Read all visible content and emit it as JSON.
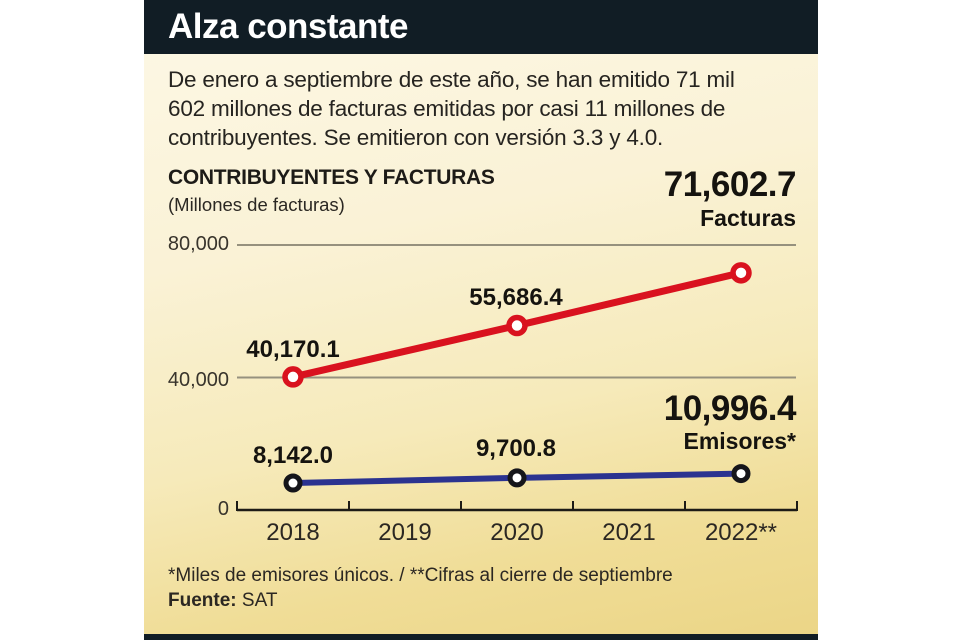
{
  "header": {
    "title": "Alza constante"
  },
  "intro": "De enero a septiembre de este año, se han emitido 71 mil 602 millones de facturas emitidas por casi 11 millones de contribuyentes. Se emitieron con versión 3.3 y 4.0.",
  "chart_data": {
    "type": "line",
    "title": "CONTRIBUYENTES Y FACTURAS",
    "subtitle": "(Millones de facturas)",
    "x": [
      2018,
      2019,
      2020,
      2021,
      2022
    ],
    "xtick_labels": [
      "2018",
      "2019",
      "2020",
      "2021",
      "2022**"
    ],
    "ytick_values": [
      0,
      40000,
      80000
    ],
    "ytick_labels": [
      "0",
      "40,000",
      "80,000"
    ],
    "ylim": [
      0,
      80000
    ],
    "grid": "horizontal",
    "legend_position": "none",
    "series": [
      {
        "id": "facturas",
        "name": "Facturas",
        "color": "#d9121f",
        "marker_color": "#d9121f",
        "years": [
          2018,
          2020,
          2022
        ],
        "values": [
          40170.1,
          55686.4,
          71602.7
        ],
        "point_labels": [
          "40,170.1",
          "55,686.4",
          "71,602.7"
        ]
      },
      {
        "id": "emisores",
        "name": "Emisores*",
        "color": "#2b3390",
        "marker_color": "#15151a",
        "years": [
          2018,
          2020,
          2022
        ],
        "values": [
          8142.0,
          9700.8,
          10996.4
        ],
        "point_labels": [
          "8,142.0",
          "9,700.8",
          "10,996.4"
        ]
      }
    ],
    "callouts": [
      {
        "value": "71,602.7",
        "label": "Facturas"
      },
      {
        "value": "10,996.4",
        "label": "Emisores*"
      }
    ]
  },
  "footnote": "*Miles de emisores únicos. / **Cifras al cierre de septiembre",
  "source": {
    "label": "Fuente:",
    "value": "SAT"
  },
  "colors": {
    "header_bg": "#111d25",
    "panel_top": "#fdf8e6",
    "panel_bottom": "#ebd586",
    "grid": "#96917e",
    "axis": "#1d1b16",
    "red": "#d9121f",
    "blue": "#2b3390",
    "text": "#242019"
  }
}
